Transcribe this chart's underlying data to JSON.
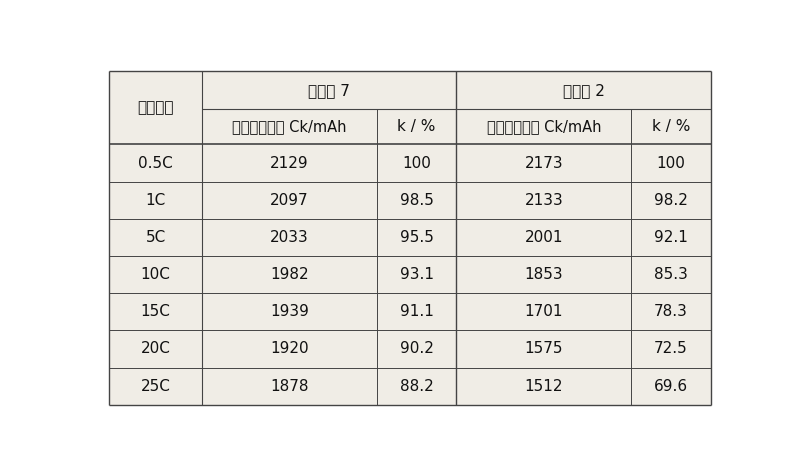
{
  "title_row1": "实施例 7",
  "title_row2": "对比例 2",
  "col0_header": "放电倍率",
  "sub_header1": "倍率放电容量 Ck/mAh",
  "sub_header2": "k / %",
  "sub_header3": "倍率放电容量 Ck/mAh",
  "sub_header4": "k / %",
  "rows": [
    [
      "0.5C",
      "2129",
      "100",
      "2173",
      "100"
    ],
    [
      "1C",
      "2097",
      "98.5",
      "2133",
      "98.2"
    ],
    [
      "5C",
      "2033",
      "95.5",
      "2001",
      "92.1"
    ],
    [
      "10C",
      "1982",
      "93.1",
      "1853",
      "85.3"
    ],
    [
      "15C",
      "1939",
      "91.1",
      "1701",
      "78.3"
    ],
    [
      "20C",
      "1920",
      "90.2",
      "1575",
      "72.5"
    ],
    [
      "25C",
      "1878",
      "88.2",
      "1512",
      "69.6"
    ]
  ],
  "fig_width": 8.0,
  "fig_height": 4.71,
  "background_color": "#ffffff",
  "table_bg": "#f0ede6",
  "line_color": "#444444",
  "text_color": "#111111",
  "font_size": 11,
  "header_font_size": 11,
  "title_font_size": 11
}
